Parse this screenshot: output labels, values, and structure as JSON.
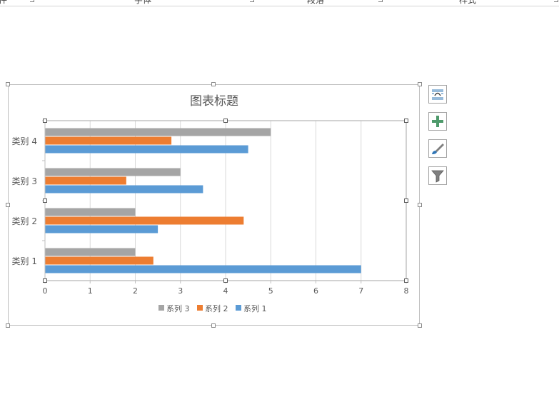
{
  "ribbon": {
    "groups": [
      "组件",
      "字体",
      "段落",
      "样式"
    ]
  },
  "side_buttons": [
    {
      "icon": "layout-options-icon"
    },
    {
      "icon": "chart-elements-plus-icon"
    },
    {
      "icon": "chart-styles-brush-icon"
    },
    {
      "icon": "chart-filter-icon"
    }
  ],
  "colors": {
    "series1": "#5b9bd5",
    "series2": "#ed7d31",
    "series3": "#a5a5a5",
    "gridline": "#d9d9d9",
    "axis": "#bfbfbf",
    "text": "#595959"
  },
  "chart_data": {
    "type": "bar",
    "orientation": "horizontal",
    "title": "图表标题",
    "categories": [
      "类别 1",
      "类别 2",
      "类别 3",
      "类别 4"
    ],
    "series": [
      {
        "name": "系列 1",
        "values": [
          7,
          2.5,
          3.5,
          4.5
        ]
      },
      {
        "name": "系列 2",
        "values": [
          2.4,
          4.4,
          1.8,
          2.8
        ]
      },
      {
        "name": "系列 3",
        "values": [
          2,
          2,
          3,
          5
        ]
      }
    ],
    "xlim": [
      0,
      8
    ],
    "xticks": [
      "0",
      "1",
      "2",
      "3",
      "4",
      "5",
      "6",
      "7",
      "8"
    ],
    "grid": true,
    "legend_position": "bottom",
    "legend_order": [
      "系列 3",
      "系列 2",
      "系列 1"
    ]
  }
}
